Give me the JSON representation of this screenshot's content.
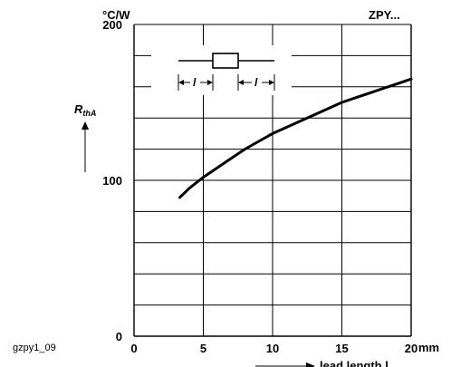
{
  "chart_data": {
    "type": "line",
    "figure_id": "gzpy1_09",
    "header_right": "ZPY...",
    "y_unit": "°C/W",
    "ylabel_main": "R",
    "ylabel_sub": "thA",
    "xlabel": "lead length l",
    "x_unit": "mm",
    "xlim": [
      0,
      20
    ],
    "ylim": [
      0,
      200
    ],
    "x_ticks": [
      "0",
      "5",
      "10",
      "15",
      "20"
    ],
    "y_ticks": [
      "0",
      "100",
      "200"
    ],
    "grid": true,
    "inset_label": "l",
    "series": [
      {
        "x": [
          3.3,
          4,
          5,
          6,
          7,
          8,
          9,
          10,
          11,
          12,
          13,
          14,
          15,
          16,
          17,
          18,
          19,
          20
        ],
        "y": [
          89,
          95,
          102,
          108,
          114,
          120,
          125,
          130,
          134,
          138,
          142,
          146,
          150,
          153,
          156,
          159,
          162,
          165
        ]
      }
    ]
  }
}
